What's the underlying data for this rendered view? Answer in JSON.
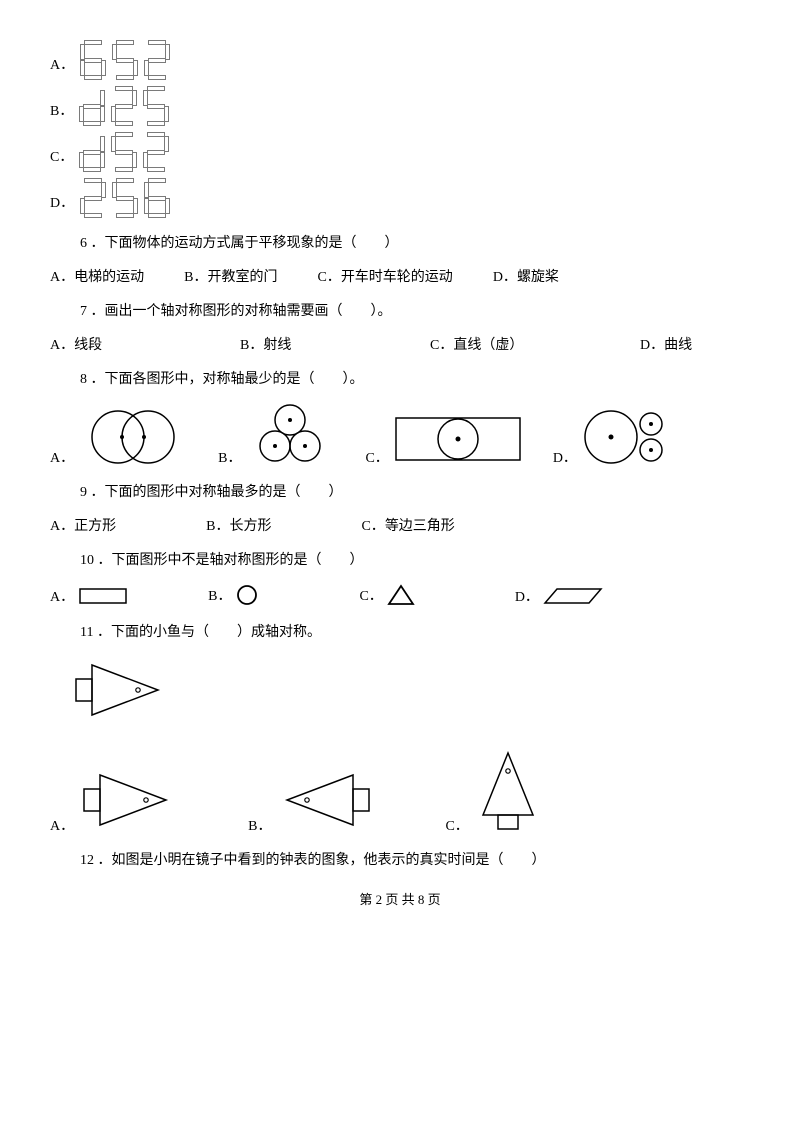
{
  "colors": {
    "stroke": "#000000",
    "seg": "#7a7a7a",
    "bg": "#ffffff"
  },
  "q5": {
    "options": [
      {
        "label": "A．",
        "digits": "652"
      },
      {
        "label": "B．",
        "digits": "d25"
      },
      {
        "label": "C．",
        "digits": "d52"
      },
      {
        "label": "D．",
        "digits": "256"
      }
    ]
  },
  "q6": {
    "text": "6 ．下面物体的运动方式属于平移现象的是（　　）",
    "choices": [
      {
        "label": "A．",
        "text": "电梯的运动"
      },
      {
        "label": "B．",
        "text": "开教室的门"
      },
      {
        "label": "C．",
        "text": "开车时车轮的运动"
      },
      {
        "label": "D．",
        "text": "螺旋桨"
      }
    ]
  },
  "q7": {
    "text": "7 ．画出一个轴对称图形的对称轴需要画（　　）。",
    "choices": [
      {
        "label": "A．",
        "text": "线段"
      },
      {
        "label": "B．",
        "text": "射线"
      },
      {
        "label": "C．",
        "text": "直线（虚）"
      },
      {
        "label": "D．",
        "text": "曲线"
      }
    ]
  },
  "q8": {
    "text": "8 ．下面各图形中，对称轴最少的是（　　）。",
    "labels": [
      "A．",
      "B．",
      "C．",
      "D．"
    ]
  },
  "q9": {
    "text": "9 ．下面的图形中对称轴最多的是（　　）",
    "choices": [
      {
        "label": "A．",
        "text": "正方形"
      },
      {
        "label": "B．",
        "text": "长方形"
      },
      {
        "label": "C．",
        "text": "等边三角形"
      }
    ]
  },
  "q10": {
    "text": "10 ．下面图形中不是轴对称图形的是（　　）",
    "labels": [
      "A．",
      "B．",
      "C．",
      "D．"
    ]
  },
  "q11": {
    "text": "11 ．下面的小鱼与（　　）成轴对称。",
    "labels": [
      "A．",
      "B．",
      "C．"
    ]
  },
  "q12": {
    "text": "12 ．如图是小明在镜子中看到的钟表的图象，他表示的真实时间是（　　）"
  },
  "footer": "第 2 页 共 8 页"
}
